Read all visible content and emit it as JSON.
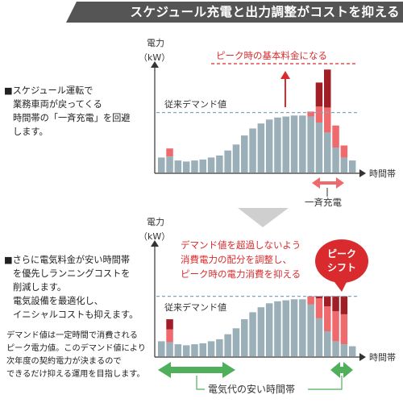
{
  "banner": {
    "title": "スケジュール充電と出力調整がコストを抑える"
  },
  "colors": {
    "banner": "#555555",
    "bar": "#9aafb7",
    "red_mid": "#ee6a6c",
    "red_dark": "#a01e26",
    "accent": "#d92b2d",
    "arrow_green": "#4faf5b",
    "dash_line": "#7ea7c4"
  },
  "top": {
    "desc": [
      "■スケジュール運転で",
      "業務車両が戻ってくる",
      "時間帯の「一斉充電」を回避",
      "します。"
    ],
    "yaxis_label": [
      "電力",
      "（kW）"
    ],
    "xaxis_label": "時間帯",
    "demand_line_label": "従来デマンド値",
    "peak_label": "ピーク時の基本料金になる",
    "charge_label": "一斉充電"
  },
  "bottom": {
    "desc": [
      "■さらに電気料金が安い時間帯",
      "を優先しランニングコストを",
      "削減します。",
      "電気設備を最適化し、",
      "イニシャルコストも抑えます。"
    ],
    "yaxis_label": [
      "電力",
      "（kW）"
    ],
    "xaxis_label": "時間帯",
    "demand_line_label": "従来デマンド値",
    "callout": [
      "デマンド値を超過しないよう",
      "消費電力の配分を調整し、",
      "ピーク時の電力消費を抑える"
    ],
    "peak_shift": [
      "ピーク",
      "シフト"
    ],
    "cheap_label": "電気代の安い時間帯"
  },
  "note": [
    "デマンド値は一定時間で消費される",
    "ピーク電力値。このデマンド値により",
    "次年度の契約電力が決まるので",
    "できるだけ抑える運用を目指します。"
  ],
  "chart_data": [
    {
      "type": "bar",
      "title": "",
      "xlabel": "時間帯",
      "ylabel": "電力（kW）",
      "base": [
        15,
        16,
        12,
        11,
        12,
        13,
        15,
        17,
        22,
        28,
        37,
        44,
        49,
        53,
        55,
        56,
        57,
        57,
        56,
        50,
        40,
        25,
        15,
        12
      ],
      "red": [
        0,
        8,
        0,
        0,
        0,
        0,
        0,
        0,
        0,
        0,
        0,
        0,
        0,
        0,
        0,
        0,
        0,
        0,
        5,
        16,
        25,
        22,
        12,
        0
      ],
      "dark_red": [
        0,
        0,
        0,
        0,
        0,
        0,
        0,
        0,
        0,
        0,
        0,
        0,
        0,
        0,
        0,
        0,
        0,
        0,
        0,
        24,
        38,
        0,
        0,
        0
      ],
      "demand_line": 60,
      "ylim": [
        0,
        130
      ]
    },
    {
      "type": "bar",
      "title": "",
      "xlabel": "時間帯",
      "ylabel": "電力（kW）",
      "base": [
        15,
        14,
        12,
        11,
        12,
        13,
        15,
        17,
        22,
        28,
        37,
        44,
        49,
        53,
        55,
        56,
        57,
        57,
        52,
        38,
        25,
        15,
        12,
        10
      ],
      "red": [
        0,
        13,
        0,
        0,
        0,
        0,
        0,
        0,
        0,
        0,
        0,
        0,
        0,
        0,
        0,
        0,
        0,
        0,
        8,
        20,
        25,
        30,
        30,
        0
      ],
      "dark_red": [
        0,
        10,
        0,
        0,
        0,
        0,
        0,
        0,
        0,
        0,
        0,
        0,
        0,
        0,
        0,
        0,
        0,
        0,
        0,
        2,
        10,
        15,
        18,
        0
      ],
      "demand_line": 60,
      "ylim": [
        0,
        66
      ]
    }
  ]
}
